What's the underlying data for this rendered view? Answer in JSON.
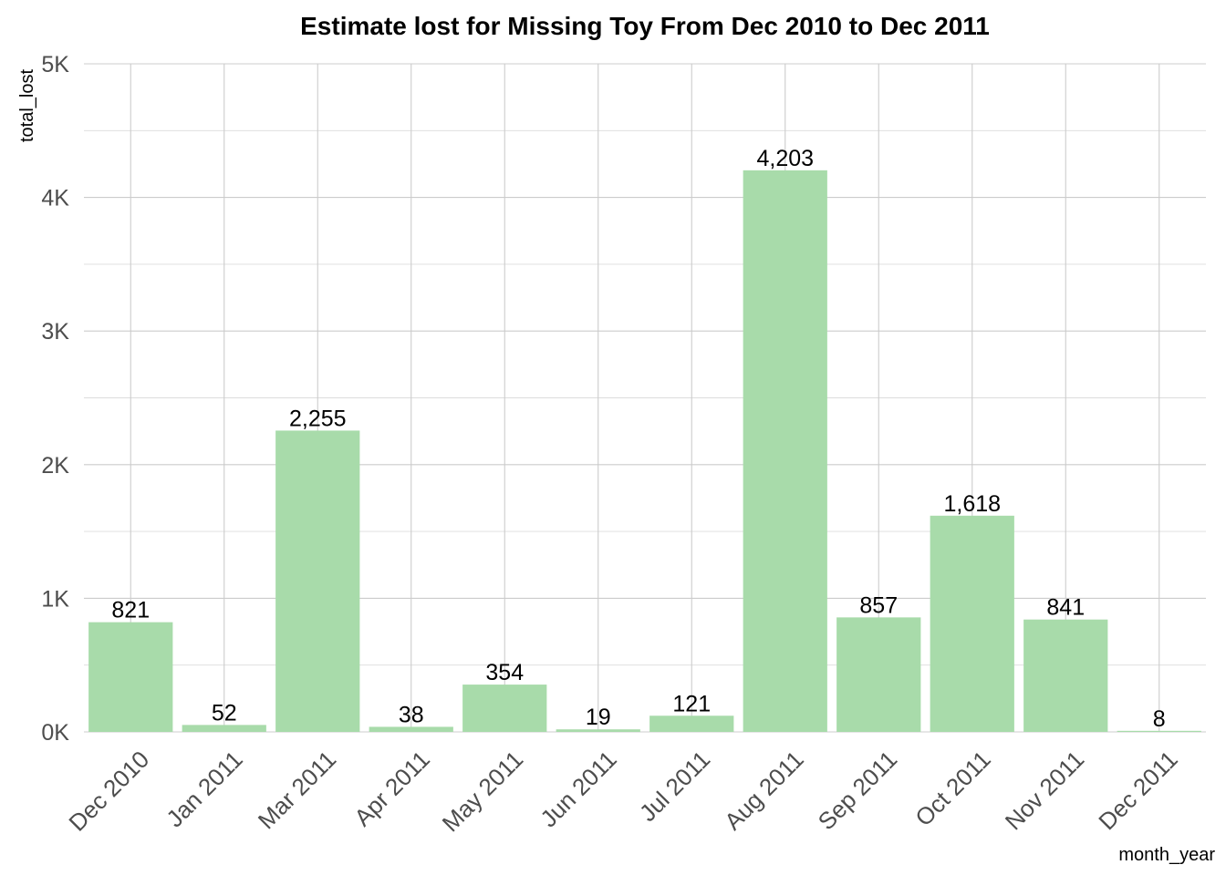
{
  "chart_data": {
    "type": "bar",
    "title": "Estimate lost for Missing Toy From Dec 2010 to Dec 2011",
    "xlabel": "month_year",
    "ylabel": "total_lost",
    "categories": [
      "Dec 2010",
      "Jan 2011",
      "Mar 2011",
      "Apr 2011",
      "May 2011",
      "Jun 2011",
      "Jul 2011",
      "Aug 2011",
      "Sep 2011",
      "Oct 2011",
      "Nov 2011",
      "Dec 2011"
    ],
    "values": [
      821,
      52,
      2255,
      38,
      354,
      19,
      121,
      4203,
      857,
      1618,
      841,
      8
    ],
    "data_labels": [
      "821",
      "52",
      "2,255",
      "38",
      "354",
      "19",
      "121",
      "4,203",
      "857",
      "1,618",
      "841",
      "8"
    ],
    "ylim": [
      0,
      5000
    ],
    "yticks": [
      0,
      1000,
      2000,
      3000,
      4000,
      5000
    ],
    "ytick_labels": [
      "0K",
      "1K",
      "2K",
      "3K",
      "4K",
      "5K"
    ],
    "grid": true,
    "legend": "none",
    "bar_color": "#a8dbaa"
  }
}
